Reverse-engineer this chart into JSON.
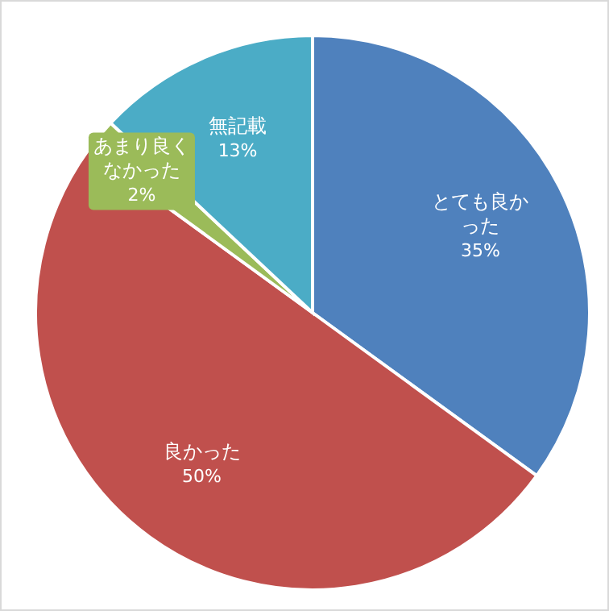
{
  "chart_data": {
    "type": "pie",
    "categories": [
      "とても良かった",
      "良かった",
      "あまり良くなかった",
      "無記載"
    ],
    "values": [
      35,
      50,
      2,
      13
    ],
    "colors": [
      "#4f81bd",
      "#c0504d",
      "#9bbb59",
      "#4bacc6"
    ],
    "value_labels": [
      "35%",
      "50%",
      "2%",
      "13%"
    ]
  }
}
